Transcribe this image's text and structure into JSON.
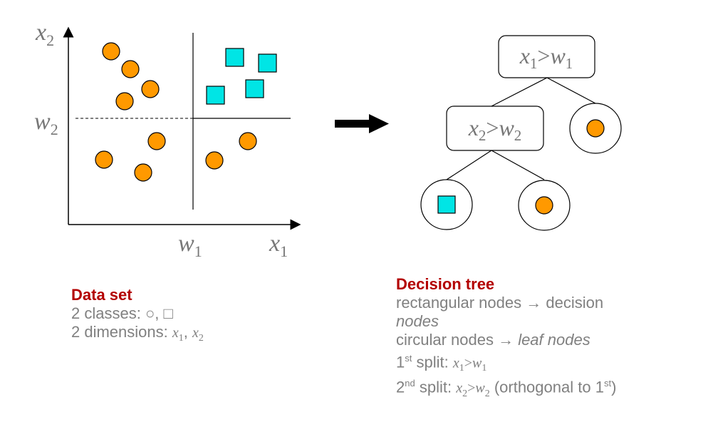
{
  "scatter": {
    "axis_y": {
      "var": "x",
      "sub": "2"
    },
    "axis_x": {
      "var": "x",
      "sub": "1"
    },
    "threshold_x": {
      "var": "w",
      "sub": "1"
    },
    "threshold_y": {
      "var": "w",
      "sub": "2"
    },
    "colors": {
      "circle": "#ff9900",
      "square": "#00e5e5"
    }
  },
  "tree": {
    "root": {
      "a": "x",
      "as": "1",
      "op": ">",
      "b": "w",
      "bs": "1"
    },
    "child": {
      "a": "x",
      "as": "2",
      "op": ">",
      "b": "w",
      "bs": "2"
    }
  },
  "dataset": {
    "title": "Data set",
    "line1_prefix": "2 classes: ",
    "circle_symbol": "○",
    "sep": ", ",
    "square_symbol": "□",
    "line2_prefix": "2 dimensions: ",
    "d1": "x",
    "d1s": "1",
    "d2": "x",
    "d2s": "2"
  },
  "decision_tree": {
    "title": "Decision tree",
    "line1": "rectangular nodes → decision",
    "line2": "nodes",
    "line3_prefix": "circular nodes → ",
    "line3_em": "leaf nodes",
    "split1_num": "1",
    "split1_sup": "st",
    "split1_text": " split: ",
    "split1_a": "x",
    "split1_as": "1",
    "split1_op": ">",
    "split1_b": "w",
    "split1_bs": "1",
    "split2_num": "2",
    "split2_sup": "nd",
    "split2_text": " split: ",
    "split2_a": "x",
    "split2_as": "2",
    "split2_op": ">",
    "split2_b": "w",
    "split2_bs": "2",
    "split2_paren": " (orthogonal to 1",
    "split2_paren_sup": "st",
    "split2_close": ")"
  }
}
